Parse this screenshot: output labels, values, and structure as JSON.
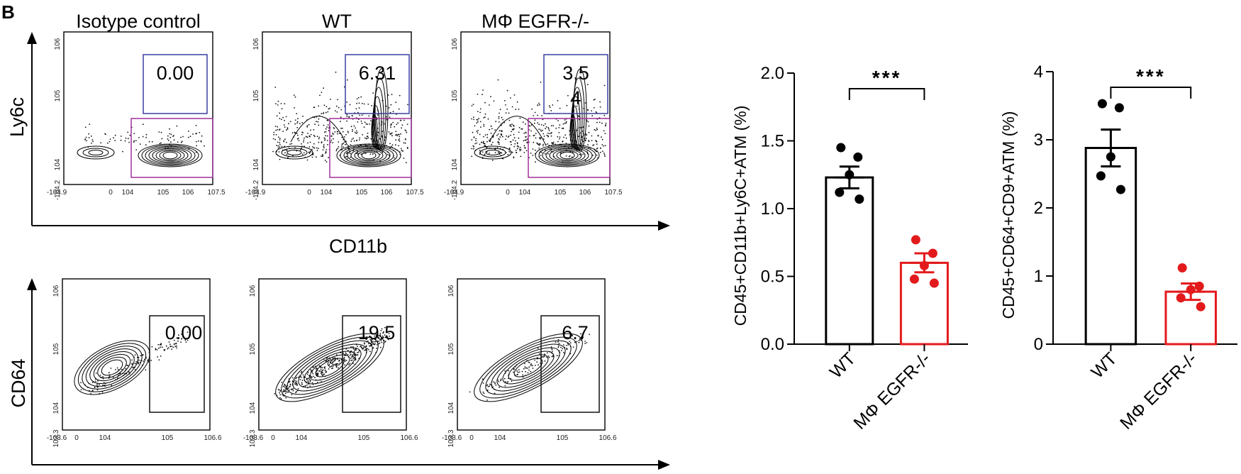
{
  "panel_label": "B",
  "flow": {
    "rows": [
      {
        "y_axis_label": "Ly6c",
        "x_axis_label": "CD11b",
        "x_ticks": [
          "-10^4.9",
          "0",
          "10^4",
          "10^5",
          "10^6",
          "10^7.5"
        ],
        "y_ticks": [
          "10^6",
          "10^5",
          "10^4",
          "-10^4.2"
        ],
        "panels": [
          {
            "title": "Isotype control",
            "gate_value": "0.00",
            "gate_color": "#3a3fa0"
          },
          {
            "title": "WT",
            "gate_value": "6.31",
            "gate_color": "#3a3fa0"
          },
          {
            "title": "MΦ EGFR-/-",
            "gate_value": "3.5",
            "gate_value_extra": "4",
            "gate_color": "#3a3fa0"
          }
        ],
        "lower_gate_color": "#a0309a"
      },
      {
        "y_axis_label": "CD64",
        "x_ticks": [
          "-10^3.6",
          "0",
          "10^4",
          "10^5",
          "10^6.6"
        ],
        "y_ticks": [
          "10^6",
          "10^5",
          "10^4",
          "10^3.3"
        ],
        "panels": [
          {
            "gate_value": "0.00"
          },
          {
            "gate_value": "19.5"
          },
          {
            "gate_value": "6.7"
          }
        ],
        "gate_color": "#111111"
      }
    ]
  },
  "chart_data": [
    {
      "type": "bar",
      "categories": [
        "WT",
        "MΦ EGFR-/-"
      ],
      "values": [
        1.23,
        0.6
      ],
      "sem": [
        0.08,
        0.07
      ],
      "points": [
        [
          1.45,
          1.38,
          1.25,
          1.12,
          1.07
        ],
        [
          0.77,
          0.67,
          0.58,
          0.48,
          0.45
        ]
      ],
      "ylabel": "CD45+CD11b+Ly6C+ATM (%)",
      "ylim": [
        0,
        2.0
      ],
      "yticks": [
        "0.0",
        "0.5",
        "1.0",
        "1.5",
        "2.0"
      ],
      "significance": "***",
      "colors": [
        "#000000",
        "#e31a1c"
      ]
    },
    {
      "type": "bar",
      "categories": [
        "WT",
        "MΦ EGFR-/-"
      ],
      "values": [
        2.88,
        0.77
      ],
      "sem": [
        0.27,
        0.12
      ],
      "points": [
        [
          3.53,
          3.47,
          2.75,
          2.47,
          2.27
        ],
        [
          1.12,
          0.85,
          0.8,
          0.68,
          0.55
        ]
      ],
      "ylabel": "CD45+CD64+CD9+ATM (%)",
      "ylim": [
        0,
        4
      ],
      "yticks": [
        "0",
        "1",
        "2",
        "3",
        "4"
      ],
      "significance": "***",
      "colors": [
        "#000000",
        "#e31a1c"
      ]
    }
  ]
}
